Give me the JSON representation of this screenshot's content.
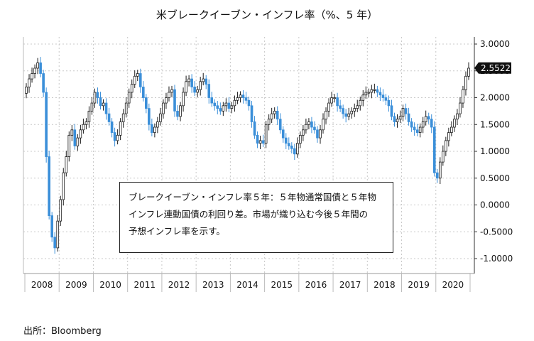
{
  "title": "米ブレークイーブン・インフレ率（%、5 年）",
  "note": {
    "lines": [
      "ブレークイーブン・インフレ率５年：５年物通常国債と５年物",
      "インフレ連動国債の利回り差。市場が織り込む今後５年間の",
      "予想インフレ率を示す。"
    ]
  },
  "source": "出所：Bloomberg",
  "chart_data": {
    "type": "candlestick",
    "title": "米ブレークイーブン・インフレ率（%、5 年）",
    "xlabel": "",
    "ylabel": "",
    "x_ticks": [
      "2008",
      "2009",
      "2010",
      "2011",
      "2012",
      "2013",
      "2014",
      "2015",
      "2016",
      "2017",
      "2018",
      "2019",
      "2020"
    ],
    "y_ticks": [
      "3.0000",
      "2.5000",
      "2.0000",
      "1.5000",
      "1.0000",
      "0.5000",
      "0.0000",
      "-0.5000",
      "-1.0000"
    ],
    "ylim": [
      -1.2,
      3.05
    ],
    "y_axis_position": "right",
    "grid": true,
    "last_value_label": "2.5522",
    "monthly_close": [
      2.2,
      2.35,
      2.45,
      2.55,
      2.65,
      2.45,
      2.1,
      0.9,
      -0.2,
      -0.6,
      -0.8,
      -0.3,
      0.1,
      0.6,
      0.9,
      1.3,
      1.4,
      1.1,
      1.25,
      1.4,
      1.5,
      1.55,
      1.75,
      1.9,
      2.1,
      2.0,
      1.85,
      1.9,
      1.7,
      1.55,
      1.35,
      1.2,
      1.3,
      1.55,
      1.7,
      1.9,
      2.1,
      2.25,
      2.4,
      2.45,
      2.2,
      2.0,
      1.8,
      1.5,
      1.35,
      1.45,
      1.55,
      1.7,
      1.9,
      2.0,
      2.1,
      2.15,
      1.75,
      1.65,
      1.85,
      2.1,
      2.3,
      2.35,
      2.2,
      2.1,
      2.15,
      2.3,
      2.35,
      2.25,
      2.0,
      1.9,
      1.85,
      1.8,
      1.75,
      1.85,
      1.9,
      1.8,
      1.85,
      1.95,
      2.0,
      2.05,
      2.0,
      1.95,
      1.85,
      1.55,
      1.3,
      1.15,
      1.2,
      1.15,
      1.5,
      1.6,
      1.7,
      1.75,
      1.6,
      1.4,
      1.25,
      1.15,
      1.1,
      1.05,
      0.95,
      1.15,
      1.3,
      1.4,
      1.5,
      1.55,
      1.45,
      1.4,
      1.25,
      1.4,
      1.6,
      1.75,
      1.9,
      2.0,
      2.0,
      1.85,
      1.8,
      1.7,
      1.65,
      1.7,
      1.75,
      1.8,
      1.85,
      1.95,
      2.05,
      2.1,
      2.1,
      2.15,
      2.15,
      2.1,
      2.05,
      2.0,
      1.95,
      1.85,
      1.65,
      1.55,
      1.6,
      1.65,
      1.8,
      1.7,
      1.55,
      1.45,
      1.4,
      1.35,
      1.45,
      1.55,
      1.65,
      1.6,
      1.45,
      0.6,
      0.5,
      0.8,
      1.0,
      1.2,
      1.35,
      1.45,
      1.6,
      1.7,
      1.9,
      2.15,
      2.4,
      2.55
    ],
    "last_value": 2.5522
  }
}
